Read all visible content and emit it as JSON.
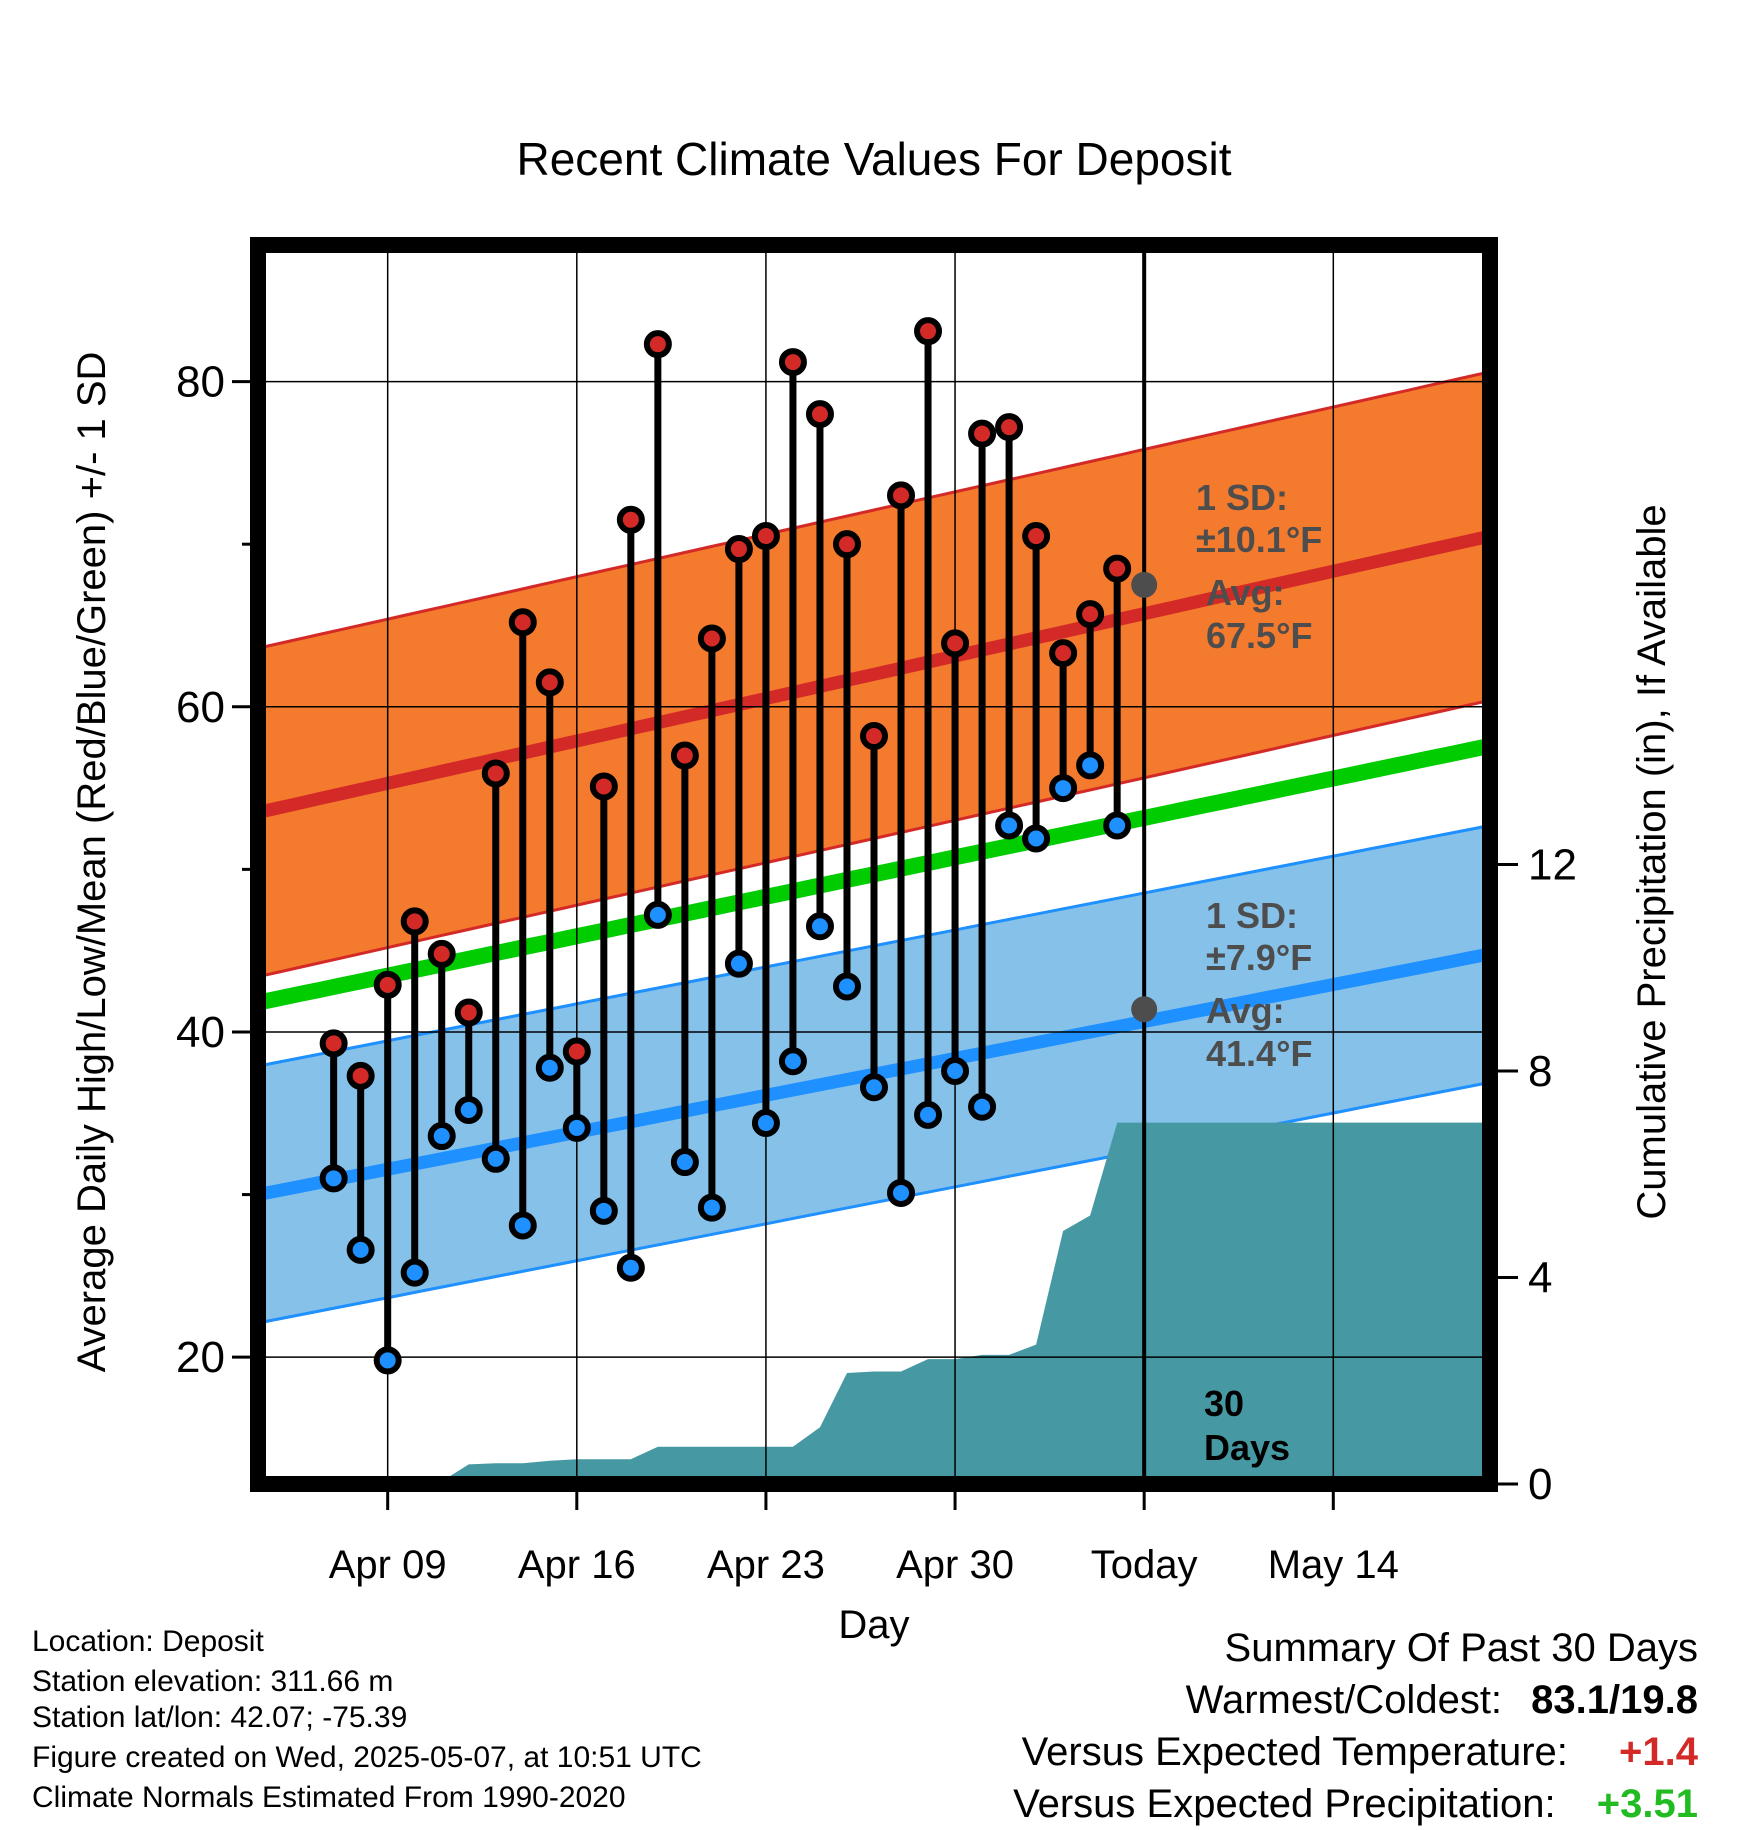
{
  "chart_data": {
    "type": "line",
    "title": "Recent Climate Values For Deposit",
    "xlabel": "Day",
    "ylabel": "Average Daily High/Low/Mean (Red/Blue/Green) +/- 1 SD",
    "y2label": "Cumulative Precipitation (in), If Available",
    "ylim": [
      12.2,
      88.4
    ],
    "y2lim": [
      0,
      24
    ],
    "xlim": [
      -4.8,
      40.8
    ],
    "y_ticks": [
      "20",
      "40",
      "60",
      "80"
    ],
    "y2_ticks": [
      "0",
      "4",
      "8",
      "12"
    ],
    "x_ticks": [
      {
        "x": 0,
        "label": "Apr 09"
      },
      {
        "x": 7,
        "label": "Apr 16"
      },
      {
        "x": 14,
        "label": "Apr 23"
      },
      {
        "x": 21,
        "label": "Apr 30"
      },
      {
        "x": 28,
        "label": "Today"
      },
      {
        "x": 35,
        "label": "May 14"
      }
    ],
    "today_x": 28,
    "today_label": [
      "30",
      "Days"
    ],
    "normals": {
      "high_mean": {
        "start": 53.5,
        "end": 70.5
      },
      "high_sd": 10.1,
      "low_mean": {
        "start": 30.0,
        "end": 44.8
      },
      "low_sd": 7.9,
      "mean": {
        "start": 41.8,
        "end": 57.6
      }
    },
    "annotations": {
      "high_sd": "1 SD:",
      "high_sd_value": "±10.1°F",
      "high_avg": "Avg:",
      "high_avg_value": "67.5°F",
      "low_sd": "1 SD:",
      "low_sd_value": "±7.9°F",
      "low_avg": "Avg:",
      "low_avg_value": "41.4°F",
      "high_today": 67.5,
      "low_today": 41.4
    },
    "series": [
      {
        "name": "Daily High",
        "values": [
          39.3,
          37.3,
          42.9,
          46.8,
          44.8,
          41.2,
          55.9,
          65.2,
          61.5,
          38.8,
          55.1,
          71.5,
          82.3,
          57.0,
          64.2,
          69.7,
          70.5,
          81.2,
          78.0,
          70.0,
          58.2,
          73.0,
          83.1,
          63.9,
          76.8,
          77.2,
          70.5,
          63.3,
          65.7,
          68.5
        ]
      },
      {
        "name": "Daily Low",
        "values": [
          31.0,
          26.6,
          19.8,
          25.2,
          33.6,
          35.2,
          32.2,
          28.1,
          37.8,
          34.1,
          29.0,
          25.5,
          47.2,
          32.0,
          29.2,
          44.2,
          34.4,
          38.2,
          46.5,
          42.8,
          36.6,
          30.1,
          34.9,
          37.6,
          35.4,
          52.7,
          51.9,
          55.0,
          56.4,
          52.7
        ]
      }
    ],
    "precip_cumulative": {
      "x": [
        -1.2,
        -1.2,
        0,
        1,
        2,
        3,
        4,
        5,
        6,
        7,
        8,
        9,
        10,
        11,
        12,
        13,
        14,
        15,
        16,
        17,
        18,
        19,
        20,
        21,
        22,
        23,
        24,
        25,
        26,
        27,
        28,
        40.8
      ],
      "values": [
        0,
        0,
        0,
        0,
        0.05,
        0.38,
        0.4,
        0.4,
        0.45,
        0.48,
        0.48,
        0.48,
        0.72,
        0.72,
        0.72,
        0.72,
        0.72,
        0.72,
        1.1,
        2.15,
        2.18,
        2.18,
        2.42,
        2.42,
        2.5,
        2.5,
        2.7,
        4.9,
        5.2,
        7.0,
        7.0,
        7.0
      ]
    },
    "colors": {
      "high_band": "#f47a2e",
      "high_line": "#d42a27",
      "low_band": "#85c1e9",
      "low_line": "#1e90ff",
      "mean_line": "#00cc00",
      "precip": "#4699a2",
      "annotation": "#4d4d4d",
      "dot_high": "#d42a27",
      "dot_low": "#1e90ff"
    }
  },
  "footer": {
    "location": "Location: Deposit",
    "elevation": "Station elevation: 311.66 m",
    "latlon": "Station lat/lon: 42.07; -75.39",
    "created": "Figure created on Wed, 2025-05-07, at 10:51 UTC",
    "normals": "Climate Normals Estimated From 1990-2020"
  },
  "summary": {
    "title": "Summary Of Past 30 Days",
    "warm_cold_label": "Warmest/Coldest:",
    "warm_cold_value": "83.1/19.8",
    "temp_label": "Versus Expected Temperature:",
    "temp_value": "+1.4",
    "temp_color": "#d42a27",
    "precip_label": "Versus Expected Precipitation:",
    "precip_value": "+3.51",
    "precip_color": "#22bb22"
  }
}
